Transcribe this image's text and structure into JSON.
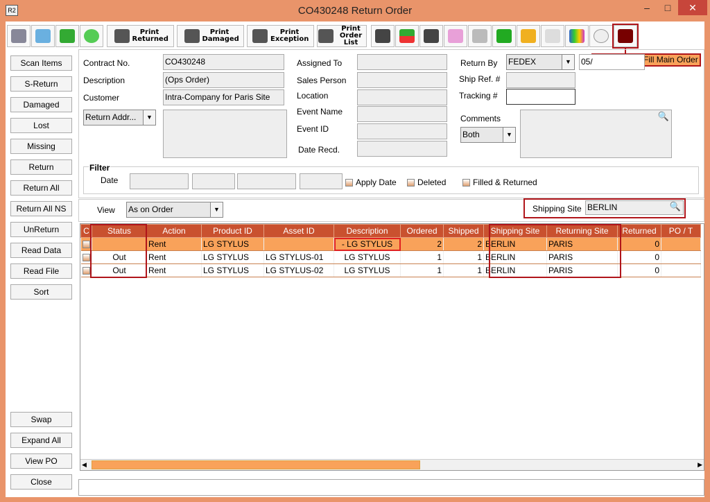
{
  "window": {
    "title": "CO430248 Return Order",
    "app_icon": "R2"
  },
  "toolbar": {
    "print_returned": "Print Returned",
    "print_damaged": "Print Damaged",
    "print_exception": "Print Exception",
    "print_order_list": "Print Order List",
    "tooltip": "Receive and Fill Main Order"
  },
  "left_buttons": [
    "Scan Items",
    "S-Return",
    "Damaged",
    "Lost",
    "Missing",
    "Return",
    "Return All",
    "Return All NS",
    "UnReturn",
    "Read Data",
    "Read File",
    "Sort"
  ],
  "bottom_buttons": [
    "Swap",
    "Expand All",
    "View PO",
    "Close"
  ],
  "form": {
    "contract_label": "Contract No.",
    "contract": "CO430248",
    "description_label": "Description",
    "description": "(Ops Order)",
    "customer_label": "Customer",
    "customer": "Intra-Company for Paris Site",
    "return_addr": "Return Addr...",
    "assigned_label": "Assigned To",
    "sales_label": "Sales Person",
    "location_label": "Location",
    "event_name_label": "Event Name",
    "event_id_label": "Event ID",
    "date_recd_label": "Date Recd.",
    "return_by_label": "Return By",
    "return_by": "FEDEX",
    "return_date": "05/",
    "ship_ref_label": "Ship Ref. #",
    "tracking_label": "Tracking #",
    "comments_label": "Comments",
    "comments_select": "Both"
  },
  "filter": {
    "title": "Filter",
    "date_label": "Date",
    "apply_date": "Apply Date",
    "deleted": "Deleted",
    "filled_returned": "Filled & Returned"
  },
  "view": {
    "label": "View",
    "value": "As on Order",
    "shipping_site_label": "Shipping Site",
    "shipping_site": "BERLIN"
  },
  "grid": {
    "columns": [
      "C",
      "Status",
      "Action",
      "Product ID",
      "Asset ID",
      "Description",
      "Ordered",
      "Shipped",
      "Shipping Site",
      "Returning Site",
      "Returned",
      "PO / T"
    ],
    "rows": [
      [
        "",
        "",
        "Rent",
        "LG STYLUS",
        "",
        "- LG STYLUS",
        "2",
        "2",
        "BERLIN",
        "PARIS",
        "0",
        ""
      ],
      [
        "",
        "Out",
        "Rent",
        "LG STYLUS",
        "LG STYLUS-01",
        "LG STYLUS",
        "1",
        "1",
        "BERLIN",
        "PARIS",
        "0",
        ""
      ],
      [
        "",
        "Out",
        "Rent",
        "LG STYLUS",
        "LG STYLUS-02",
        "LG STYLUS",
        "1",
        "1",
        "BERLIN",
        "PARIS",
        "0",
        ""
      ]
    ]
  },
  "colors": {
    "accent": "#e9946a",
    "header": "#c9512f",
    "selected_row": "#f9a25a",
    "highlight": "#b0151a"
  }
}
